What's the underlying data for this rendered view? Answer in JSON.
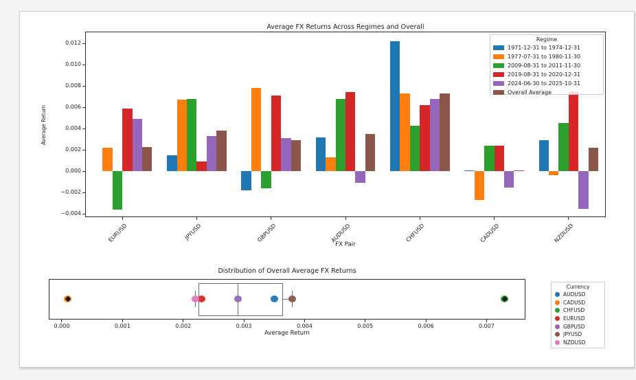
{
  "window": {
    "background_color": "#f3f4f5",
    "figure_background_color": "#ffffff"
  },
  "chart_data": [
    {
      "type": "bar",
      "title": "Average FX Returns Across Regimes and Overall",
      "xlabel": "FX Pair",
      "ylabel": "Average Return",
      "legend_title": "Regime",
      "legend_position": "upper right",
      "grid": false,
      "ylim": [
        -0.0043,
        0.0131
      ],
      "ytick_values": [
        0.012,
        0.01,
        0.008,
        0.006,
        0.004,
        0.002,
        0.0,
        -0.002,
        -0.004
      ],
      "ytick_labels": [
        "0.012",
        "0.010",
        "0.008",
        "0.006",
        "0.004",
        "0.002",
        "0.000",
        "−0.002",
        "−0.004"
      ],
      "categories": [
        "EURUSD",
        "JPYUSD",
        "GBPUSD",
        "AUDUSD",
        "CHFUSD",
        "CADUSD",
        "NZDUSD"
      ],
      "series": [
        {
          "name": "1971-12-31 to 1974-12-31",
          "color": "#1f77b4",
          "values": [
            null,
            0.0015,
            -0.0018,
            0.0032,
            0.0122,
            0.0001,
            0.0029
          ]
        },
        {
          "name": "1977-07-31 to 1980-11-30",
          "color": "#ff7f0e",
          "values": [
            0.0022,
            0.0067,
            0.0078,
            0.0013,
            0.0073,
            -0.0027,
            -0.0004
          ]
        },
        {
          "name": "2009-08-31 to 2011-11-30",
          "color": "#2ca02c",
          "values": [
            -0.0036,
            0.0068,
            -0.0016,
            0.0068,
            0.0043,
            0.0024,
            0.0045
          ]
        },
        {
          "name": "2019-08-31 to 2020-12-31",
          "color": "#d62728",
          "values": [
            0.0059,
            0.0009,
            0.0071,
            0.0074,
            0.0062,
            0.0024,
            0.0075
          ]
        },
        {
          "name": "2024-06-30 to 2025-10-31",
          "color": "#9467bd",
          "values": [
            0.0049,
            0.0033,
            0.0031,
            -0.0011,
            0.0068,
            -0.0015,
            -0.0035
          ]
        },
        {
          "name": "Overall Average",
          "color": "#8c564b",
          "values": [
            0.0023,
            0.0038,
            0.0029,
            0.0035,
            0.0073,
            0.0001,
            0.0022
          ]
        }
      ]
    },
    {
      "type": "box+strip",
      "orientation": "horizontal",
      "title": "Distribution of Overall Average FX Returns",
      "xlabel": "Average Return",
      "legend_title": "Currency",
      "legend_position": "outside right",
      "xlim": [
        -0.000215,
        0.00764
      ],
      "xtick_values": [
        0.0,
        0.001,
        0.002,
        0.003,
        0.004,
        0.005,
        0.006,
        0.007
      ],
      "xtick_labels": [
        "0.000",
        "0.001",
        "0.002",
        "0.003",
        "0.004",
        "0.005",
        "0.006",
        "0.007"
      ],
      "points": [
        {
          "name": "AUDUSD",
          "color": "#1f77b4",
          "value": 0.0035
        },
        {
          "name": "CADUSD",
          "color": "#ff7f0e",
          "value": 0.0001
        },
        {
          "name": "CHFUSD",
          "color": "#2ca02c",
          "value": 0.0073
        },
        {
          "name": "EURUSD",
          "color": "#d62728",
          "value": 0.0023
        },
        {
          "name": "GBPUSD",
          "color": "#9467bd",
          "value": 0.0029
        },
        {
          "name": "JPYUSD",
          "color": "#8c564b",
          "value": 0.0038
        },
        {
          "name": "NZDUSD",
          "color": "#e377c2",
          "value": 0.0022
        }
      ],
      "box": {
        "q1": 0.00225,
        "median": 0.0029,
        "q3": 0.00365,
        "whisker_low": 0.0022,
        "whisker_high": 0.0038,
        "fliers": [
          0.0001,
          0.0073
        ],
        "line_color": "#6e6e6e",
        "flier_marker": "diamond",
        "flier_color": "#1a1a1a"
      }
    }
  ]
}
